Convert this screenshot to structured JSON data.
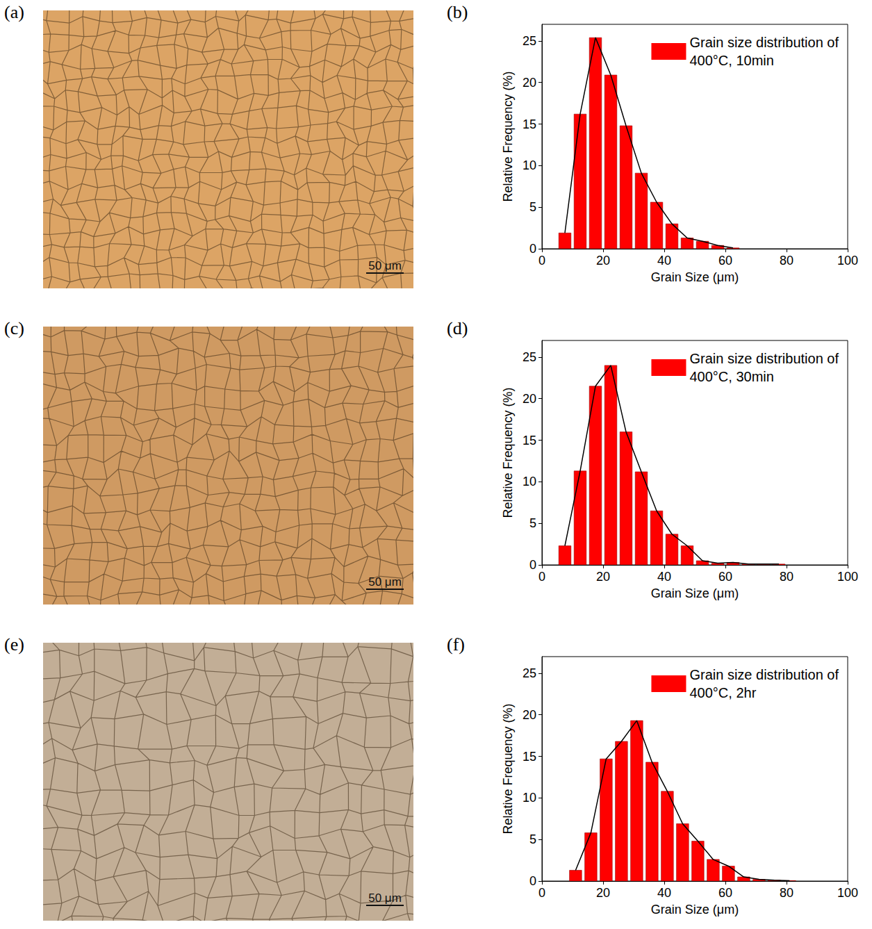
{
  "images": [
    {
      "panel": "(a)",
      "scale_bar": "50 μm",
      "color": "#dca465"
    },
    {
      "panel": "(c)",
      "scale_bar": "50 μm",
      "color": "#cf9a62"
    },
    {
      "panel": "(e)",
      "scale_bar": "50 μm",
      "color": "#c2ae96"
    }
  ],
  "chart_data": [
    {
      "panel": "(b)",
      "type": "histogram",
      "x_label": "Grain Size (μm)",
      "y_label": "Relative Frequency (%)",
      "bins": [
        5,
        10,
        15,
        20,
        25,
        30,
        35,
        40,
        45,
        50,
        55,
        60,
        65
      ],
      "series": [
        {
          "name": "Grain size distribution of 400°C, 10min",
          "type": "bar",
          "color": "#ff0000",
          "values": [
            1.9,
            16.2,
            25.4,
            20.9,
            14.8,
            9.1,
            5.6,
            3.0,
            1.3,
            0.9,
            0.4,
            0.1
          ]
        },
        {
          "type": "line",
          "color": "#000000",
          "marker": "none",
          "line_style": "solid",
          "values": [
            1.9,
            16.2,
            25.4,
            20.9,
            14.8,
            9.1,
            5.6,
            3.0,
            1.3,
            0.9,
            0.4,
            0.1
          ]
        }
      ],
      "xlim": [
        0,
        100
      ],
      "xticks": [
        0,
        20,
        40,
        60,
        80,
        100
      ],
      "ylim": [
        0,
        27
      ],
      "yticks": [
        0,
        5,
        10,
        15,
        20,
        25
      ],
      "legend": "upper right",
      "grid": false
    },
    {
      "panel": "(d)",
      "type": "histogram",
      "x_label": "Grain Size (μm)",
      "y_label": "Relative Frequency (%)",
      "bins": [
        5,
        10,
        15,
        20,
        25,
        30,
        35,
        40,
        45,
        50,
        55,
        60,
        65,
        70,
        75,
        80
      ],
      "series": [
        {
          "name": "Grain size distribution of 400°C, 30min",
          "type": "bar",
          "color": "#ff0000",
          "values": [
            2.3,
            11.3,
            21.5,
            24.0,
            16.0,
            11.2,
            6.5,
            3.7,
            2.3,
            0.5,
            0.2,
            0.3,
            0.1,
            0.1,
            0.1
          ]
        },
        {
          "type": "line",
          "color": "#000000",
          "marker": "none",
          "line_style": "solid",
          "values": [
            2.3,
            11.3,
            21.5,
            24.0,
            16.0,
            11.2,
            6.5,
            3.7,
            2.3,
            0.5,
            0.2,
            0.3,
            0.1,
            0.1,
            0.1
          ]
        }
      ],
      "xlim": [
        0,
        100
      ],
      "xticks": [
        0,
        20,
        40,
        60,
        80,
        100
      ],
      "ylim": [
        0,
        27
      ],
      "yticks": [
        0,
        5,
        10,
        15,
        20,
        25
      ],
      "legend": "upper right",
      "grid": false
    },
    {
      "panel": "(f)",
      "type": "histogram",
      "x_label": "Grain Size (μm)",
      "y_label": "Relative Frequency (%)",
      "bins": [
        8.5,
        13.5,
        18.5,
        23.5,
        28.5,
        33.5,
        38.5,
        43.5,
        48.5,
        53.5,
        58.5,
        63.5,
        68.5,
        73.5,
        78.5,
        83.5
      ],
      "series": [
        {
          "name": "Grain size distribution of 400°C, 2hr",
          "type": "bar",
          "color": "#ff0000",
          "values": [
            1.3,
            5.8,
            14.7,
            16.8,
            19.3,
            14.3,
            10.8,
            6.9,
            4.8,
            2.6,
            1.8,
            0.5,
            0.2,
            0.1,
            0.05
          ]
        },
        {
          "type": "line",
          "color": "#000000",
          "marker": "none",
          "line_style": "solid",
          "values": [
            1.3,
            5.8,
            14.7,
            16.8,
            19.3,
            14.3,
            10.8,
            6.9,
            4.8,
            2.6,
            1.8,
            0.5,
            0.2,
            0.1,
            0.05
          ]
        }
      ],
      "xlim": [
        0,
        100
      ],
      "xticks": [
        0,
        20,
        40,
        60,
        80,
        100
      ],
      "ylim": [
        0,
        27
      ],
      "yticks": [
        0,
        5,
        10,
        15,
        20,
        25
      ],
      "legend": "upper right",
      "grid": false
    }
  ]
}
